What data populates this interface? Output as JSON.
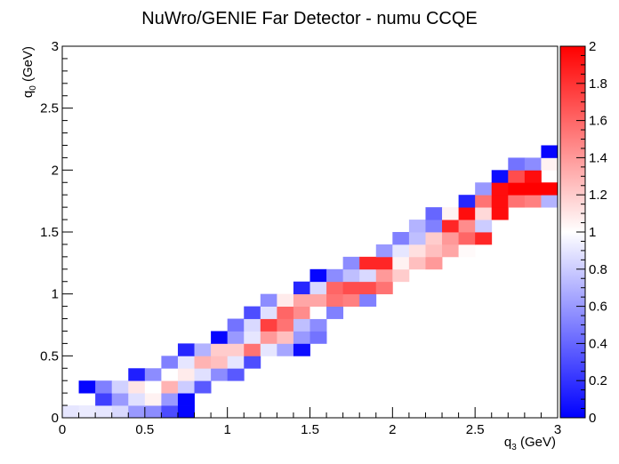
{
  "chart_data": {
    "type": "heatmap",
    "title": "NuWro/GENIE Far Detector - numu CCQE",
    "xlabel": {
      "main": "q",
      "sub": "3",
      "unit": " (GeV)"
    },
    "ylabel": {
      "main": "q",
      "sub": "0",
      "unit": " (GeV)"
    },
    "xlim": [
      0,
      3
    ],
    "ylim": [
      0,
      3
    ],
    "z_range": [
      0,
      2
    ],
    "x_bins": 30,
    "y_bins": 30,
    "x_ticks": [
      "0",
      "0.5",
      "1",
      "1.5",
      "2",
      "2.5",
      "3"
    ],
    "y_ticks": [
      "0",
      "0.5",
      "1",
      "1.5",
      "2",
      "2.5",
      "3"
    ],
    "z_ticks": [
      "0",
      "0.2",
      "0.4",
      "0.6",
      "0.8",
      "1",
      "1.2",
      "1.4",
      "1.6",
      "1.8",
      "2"
    ],
    "colormap": {
      "low": "#0000ff",
      "mid": "#ffffff",
      "high": "#ff0000"
    },
    "grid": false,
    "colorbar": "right",
    "cells": [
      [
        0,
        0,
        0.9
      ],
      [
        1,
        0,
        0.92
      ],
      [
        2,
        0,
        0.9
      ],
      [
        3,
        0,
        0.85
      ],
      [
        4,
        0,
        0.6
      ],
      [
        5,
        0,
        0.55
      ],
      [
        6,
        0,
        0.3
      ],
      [
        7,
        0,
        0.02
      ],
      [
        2,
        1,
        0.25
      ],
      [
        3,
        1,
        0.6
      ],
      [
        4,
        1,
        0.88
      ],
      [
        5,
        1,
        1.05
      ],
      [
        6,
        1,
        0.6
      ],
      [
        7,
        1,
        0.02
      ],
      [
        1,
        2,
        0.02
      ],
      [
        2,
        2,
        0.5
      ],
      [
        3,
        2,
        0.82
      ],
      [
        4,
        2,
        1.1
      ],
      [
        5,
        2,
        1.0
      ],
      [
        6,
        2,
        1.3
      ],
      [
        7,
        2,
        0.8
      ],
      [
        8,
        2,
        0.35
      ],
      [
        4,
        3,
        0.12
      ],
      [
        5,
        3,
        0.55
      ],
      [
        6,
        3,
        1.0
      ],
      [
        7,
        3,
        1.08
      ],
      [
        8,
        3,
        0.88
      ],
      [
        9,
        3,
        0.55
      ],
      [
        10,
        3,
        0.35
      ],
      [
        6,
        4,
        0.5
      ],
      [
        7,
        4,
        0.9
      ],
      [
        8,
        4,
        1.3
      ],
      [
        9,
        4,
        1.25
      ],
      [
        10,
        4,
        0.9
      ],
      [
        11,
        4,
        0.3
      ],
      [
        7,
        5,
        0.15
      ],
      [
        8,
        5,
        0.7
      ],
      [
        9,
        5,
        1.2
      ],
      [
        10,
        5,
        1.2
      ],
      [
        11,
        5,
        1.55
      ],
      [
        12,
        5,
        0.9
      ],
      [
        13,
        5,
        0.65
      ],
      [
        14,
        5,
        0.05
      ],
      [
        9,
        6,
        0.02
      ],
      [
        10,
        6,
        0.6
      ],
      [
        11,
        6,
        0.9
      ],
      [
        12,
        6,
        1.4
      ],
      [
        13,
        6,
        1.25
      ],
      [
        14,
        6,
        0.6
      ],
      [
        15,
        6,
        0.45
      ],
      [
        10,
        7,
        0.45
      ],
      [
        11,
        7,
        0.85
      ],
      [
        12,
        7,
        1.75
      ],
      [
        13,
        7,
        1.55
      ],
      [
        14,
        7,
        0.75
      ],
      [
        15,
        7,
        0.55
      ],
      [
        11,
        8,
        0.3
      ],
      [
        12,
        8,
        0.88
      ],
      [
        13,
        8,
        1.6
      ],
      [
        14,
        8,
        1.45
      ],
      [
        15,
        8,
        1.0
      ],
      [
        16,
        8,
        0.5
      ],
      [
        12,
        9,
        0.55
      ],
      [
        13,
        9,
        1.08
      ],
      [
        14,
        9,
        1.35
      ],
      [
        15,
        9,
        1.35
      ],
      [
        16,
        9,
        1.55
      ],
      [
        17,
        9,
        1.5
      ],
      [
        18,
        9,
        0.5
      ],
      [
        14,
        10,
        0.15
      ],
      [
        15,
        10,
        0.85
      ],
      [
        16,
        10,
        1.6
      ],
      [
        17,
        10,
        1.7
      ],
      [
        18,
        10,
        1.7
      ],
      [
        19,
        10,
        1.55
      ],
      [
        15,
        11,
        0.02
      ],
      [
        16,
        11,
        0.55
      ],
      [
        17,
        11,
        0.75
      ],
      [
        18,
        11,
        0.85
      ],
      [
        19,
        11,
        1.4
      ],
      [
        20,
        11,
        1.2
      ],
      [
        17,
        12,
        0.55
      ],
      [
        18,
        12,
        1.85
      ],
      [
        19,
        12,
        1.85
      ],
      [
        20,
        12,
        1.05
      ],
      [
        21,
        12,
        1.25
      ],
      [
        22,
        12,
        1.4
      ],
      [
        19,
        13,
        0.6
      ],
      [
        20,
        13,
        0.9
      ],
      [
        21,
        13,
        1.12
      ],
      [
        22,
        13,
        1.25
      ],
      [
        23,
        13,
        1.35
      ],
      [
        24,
        13,
        1.02
      ],
      [
        20,
        14,
        0.5
      ],
      [
        21,
        14,
        0.75
      ],
      [
        22,
        14,
        1.2
      ],
      [
        23,
        14,
        1.4
      ],
      [
        24,
        14,
        1.6
      ],
      [
        25,
        14,
        1.85
      ],
      [
        21,
        15,
        0.7
      ],
      [
        22,
        15,
        0.5
      ],
      [
        23,
        15,
        1.85
      ],
      [
        24,
        15,
        1.45
      ],
      [
        25,
        15,
        0.8
      ],
      [
        22,
        16,
        0.4
      ],
      [
        23,
        16,
        1.05
      ],
      [
        24,
        16,
        1.95
      ],
      [
        25,
        16,
        1.15
      ],
      [
        26,
        16,
        1.95
      ],
      [
        24,
        17,
        0.15
      ],
      [
        25,
        17,
        1.55
      ],
      [
        26,
        17,
        1.95
      ],
      [
        27,
        17,
        1.55
      ],
      [
        28,
        17,
        1.5
      ],
      [
        29,
        17,
        0.7
      ],
      [
        25,
        18,
        0.6
      ],
      [
        26,
        18,
        1.95
      ],
      [
        27,
        18,
        2.0
      ],
      [
        28,
        18,
        2.0
      ],
      [
        29,
        18,
        2.0
      ],
      [
        26,
        19,
        0.05
      ],
      [
        27,
        19,
        1.7
      ],
      [
        28,
        19,
        1.95
      ],
      [
        27,
        20,
        0.45
      ],
      [
        28,
        20,
        0.55
      ],
      [
        29,
        20,
        1.05
      ],
      [
        29,
        21,
        0.02
      ]
    ]
  }
}
